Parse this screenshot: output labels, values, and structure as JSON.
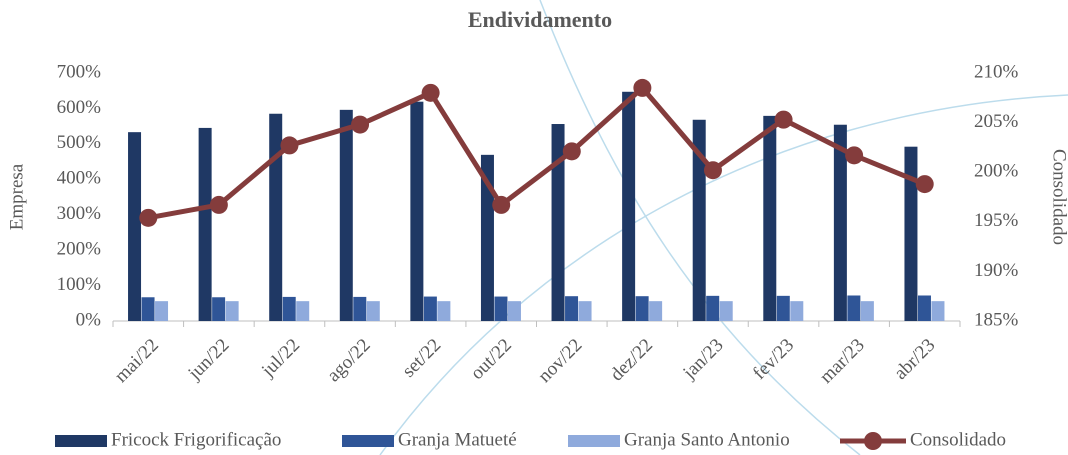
{
  "chart_data": {
    "type": "bar+line",
    "title": "Endividamento",
    "y_label": "Empresa",
    "y2_label": "Consolidado",
    "categories": [
      "mai/22",
      "jun/22",
      "jul/22",
      "ago/22",
      "set/22",
      "out/22",
      "nov/22",
      "dez/22",
      "jan/23",
      "fev/23",
      "mar/23",
      "abr/23"
    ],
    "series": [
      {
        "name": "Fricock Frigorificação",
        "color": "#1f3864",
        "type": "bar",
        "values": [
          533,
          545,
          585,
          596,
          619,
          469,
          556,
          647,
          568,
          579,
          554,
          492
        ]
      },
      {
        "name": "Granja Matueté",
        "color": "#2f5597",
        "type": "bar",
        "values": [
          67,
          67,
          68,
          68,
          69,
          69,
          70,
          70,
          71,
          71,
          72,
          72
        ]
      },
      {
        "name": "Granja Santo Antonio",
        "color": "#8faadc",
        "type": "bar",
        "values": [
          56,
          56,
          56,
          56,
          56,
          56,
          56,
          56,
          56,
          56,
          56,
          56
        ]
      },
      {
        "name": "Consolidado",
        "color": "#843c3c",
        "type": "line",
        "axis": "y2",
        "values": [
          195.4,
          196.7,
          202.7,
          204.8,
          208.0,
          196.7,
          202.1,
          208.5,
          200.2,
          205.3,
          201.7,
          198.8
        ]
      }
    ],
    "ylim": [
      0,
      700
    ],
    "yticks": [
      {
        "value": 0,
        "label": "0%"
      },
      {
        "value": 100,
        "label": "100%"
      },
      {
        "value": 200,
        "label": "200%"
      },
      {
        "value": 300,
        "label": "300%"
      },
      {
        "value": 400,
        "label": "400%"
      },
      {
        "value": 500,
        "label": "500%"
      },
      {
        "value": 600,
        "label": "600%"
      },
      {
        "value": 700,
        "label": "700%"
      }
    ],
    "y2lim": [
      185,
      210
    ],
    "y2ticks": [
      {
        "value": 185,
        "label": "185%"
      },
      {
        "value": 190,
        "label": "190%"
      },
      {
        "value": 195,
        "label": "195%"
      },
      {
        "value": 200,
        "label": "200%"
      },
      {
        "value": 205,
        "label": "205%"
      },
      {
        "value": 210,
        "label": "210%"
      }
    ],
    "legend": "bottom"
  }
}
